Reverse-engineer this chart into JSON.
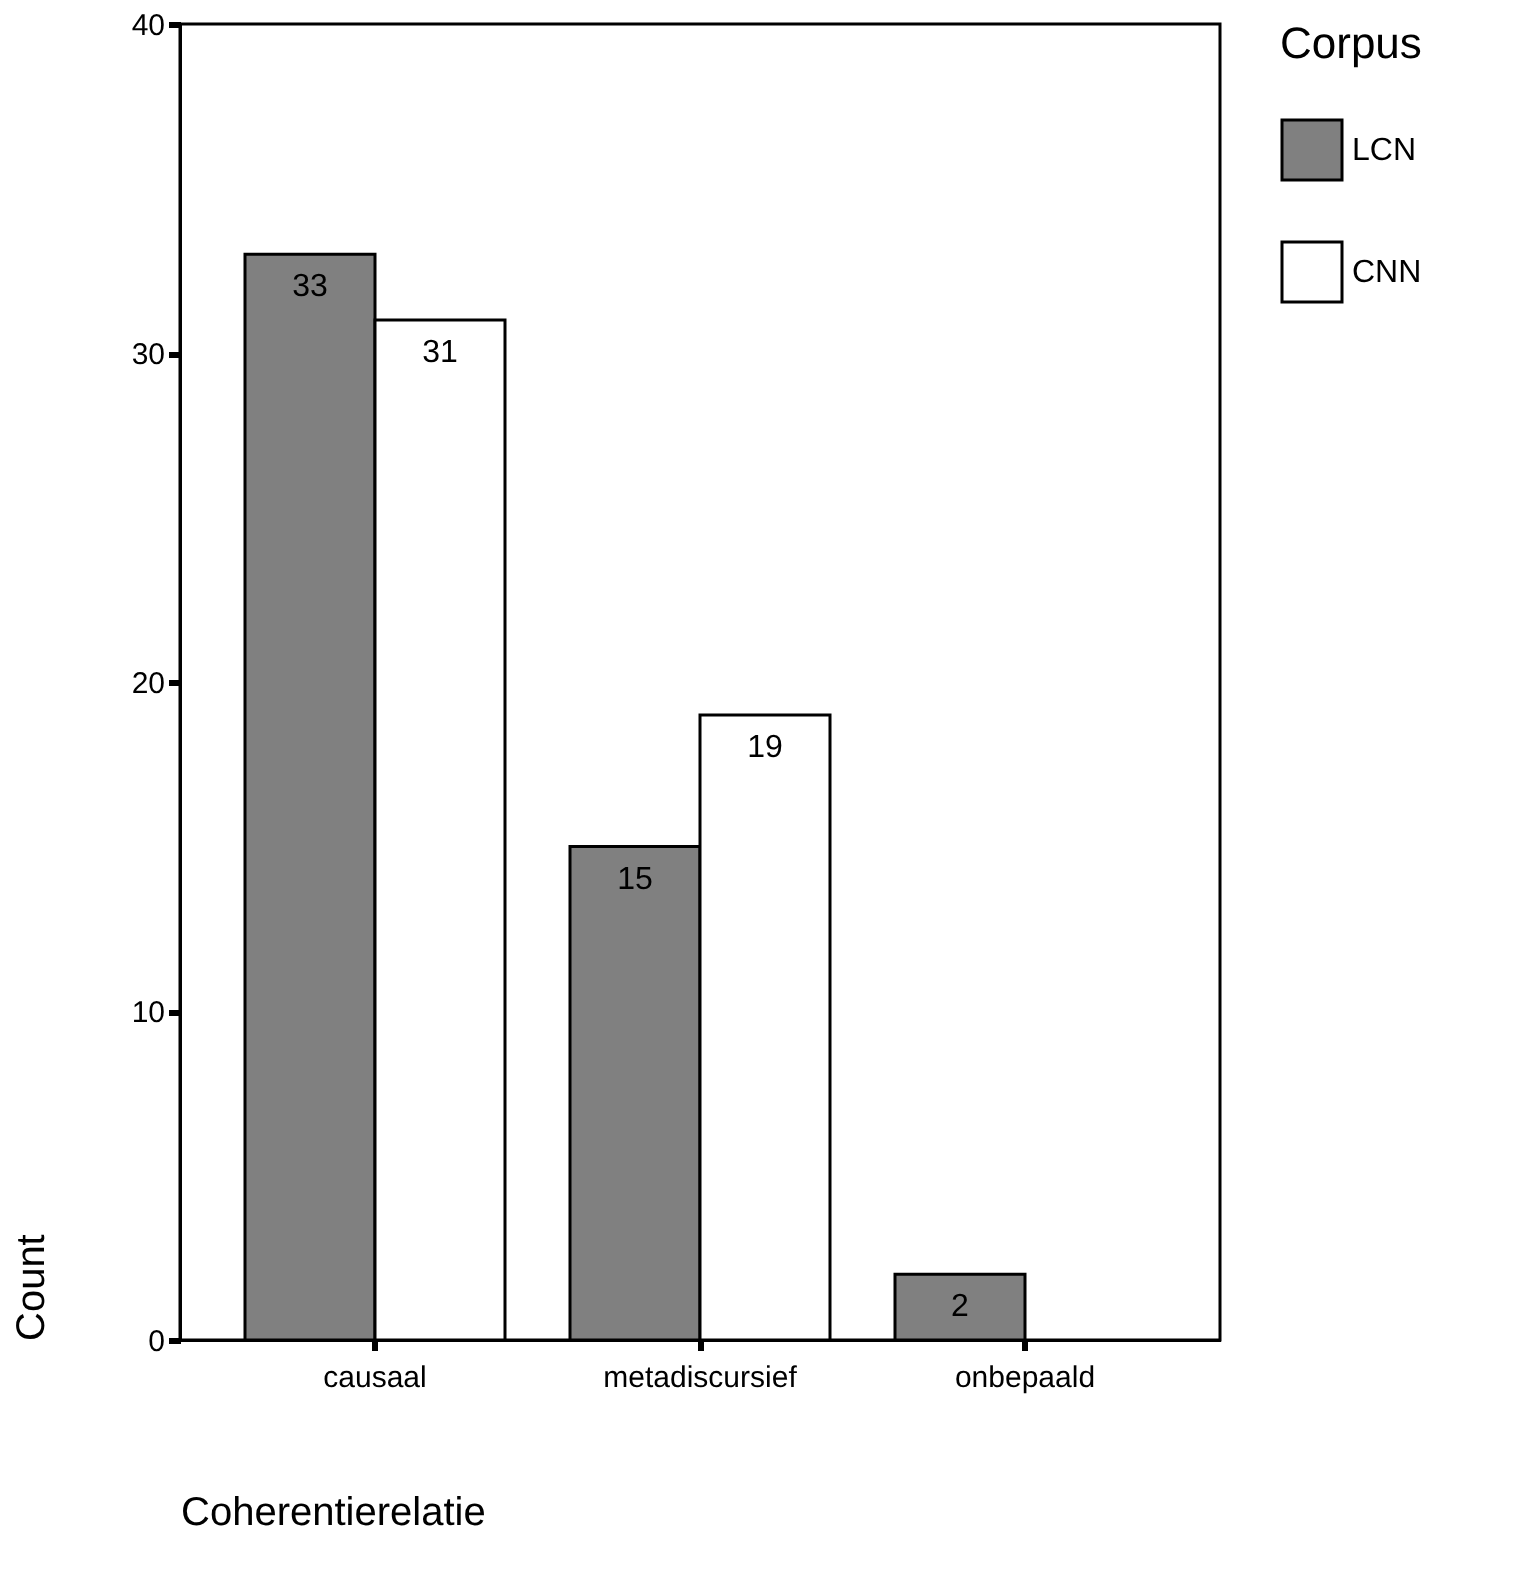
{
  "chart_data": {
    "type": "bar",
    "xlabel": "Coherentierelatie",
    "ylabel": "Count",
    "legend_title": "Corpus",
    "legend": "right",
    "grid": false,
    "categories": [
      "causaal",
      "metadiscursief",
      "onbepaald"
    ],
    "series": [
      {
        "name": "LCN",
        "color": "#808080",
        "values": [
          33,
          15,
          2
        ],
        "value_labels": [
          "33",
          "15",
          "2"
        ]
      },
      {
        "name": "CNN",
        "color": "#ffffff",
        "values": [
          31,
          19,
          null
        ],
        "value_labels": [
          "31",
          "19",
          null
        ]
      }
    ],
    "ylim": [
      0,
      40
    ],
    "yticks": [
      0,
      10,
      20,
      30,
      40
    ]
  }
}
